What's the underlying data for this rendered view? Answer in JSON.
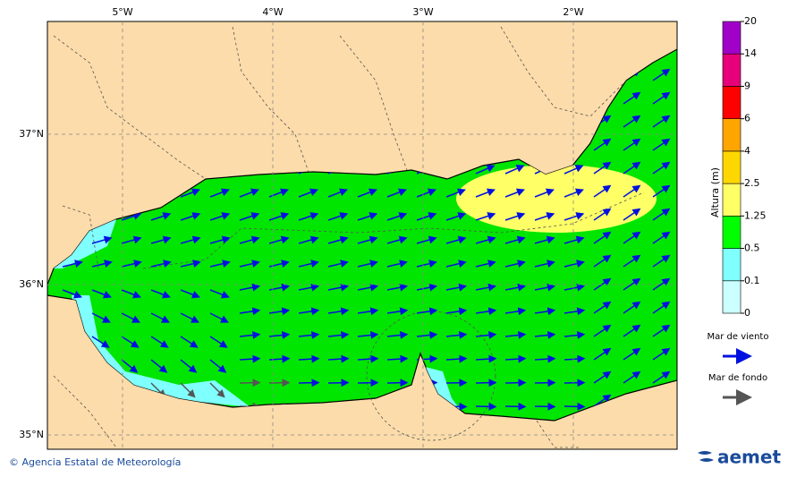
{
  "map": {
    "lon_ticks": [
      {
        "value": -5,
        "label": "5°W"
      },
      {
        "value": -4,
        "label": "4°W"
      },
      {
        "value": -3,
        "label": "3°W"
      },
      {
        "value": -2,
        "label": "2°W"
      }
    ],
    "lat_ticks": [
      {
        "value": 37,
        "label": "37°N"
      },
      {
        "value": 36,
        "label": "36°N"
      },
      {
        "value": 35,
        "label": "35°N"
      }
    ]
  },
  "colorbar": {
    "title": "Altura (m)",
    "levels": [
      0,
      0.1,
      0.5,
      1.25,
      2.5,
      4,
      6,
      9,
      14,
      20
    ],
    "colors": [
      "#ccffff",
      "#80ffff",
      "#00ff00",
      "#ffff66",
      "#ffd700",
      "#ffa500",
      "#ff0000",
      "#e6007a",
      "#a000c8"
    ]
  },
  "legend": {
    "items": [
      {
        "label": "Mar de viento",
        "color": "#0010e0"
      },
      {
        "label": "Mar de fondo",
        "color": "#555555"
      }
    ]
  },
  "footer": {
    "credit": "© Agencia Estatal de Meteorología",
    "logo": "aemet"
  }
}
